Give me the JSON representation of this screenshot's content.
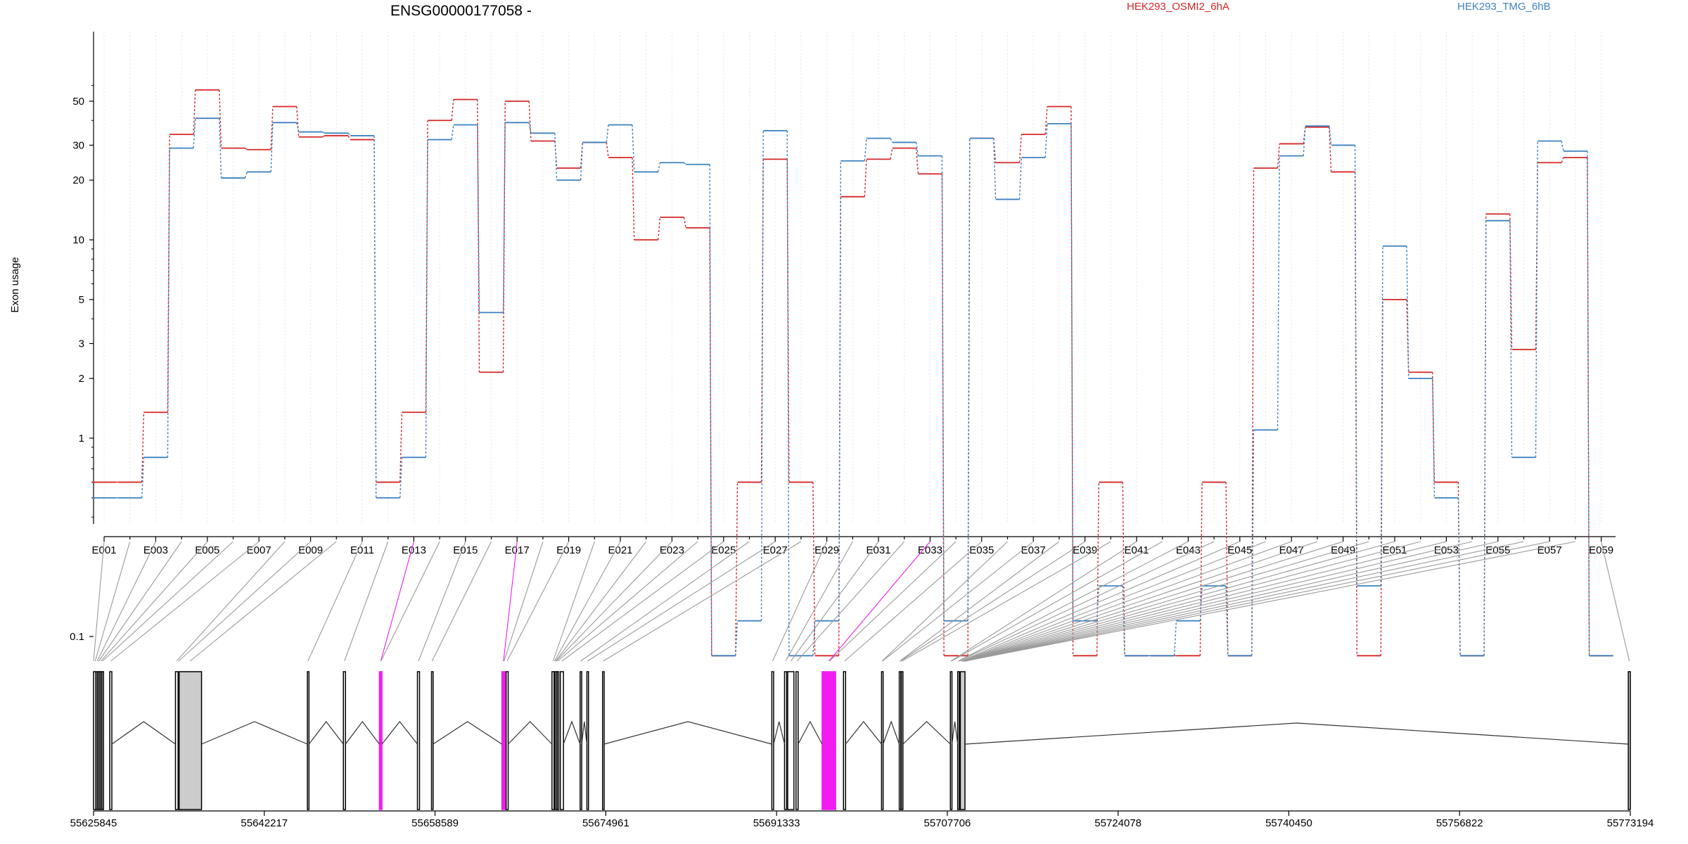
{
  "chart_data": {
    "type": "line",
    "title": "ENSG00000177058 -",
    "ylabel": "Exon usage",
    "xlabel": "",
    "yscale": "log",
    "ylim": [
      0.075,
      70
    ],
    "y_ticks": [
      0.1,
      1,
      2,
      3,
      5,
      10,
      20,
      30,
      50
    ],
    "y_tick_labels": [
      "0.1",
      "1",
      "2",
      "3",
      "5",
      "10",
      "20",
      "30",
      "50"
    ],
    "grid": "vertical dotted",
    "legend_position": "top",
    "colors": {
      "series_a": "#d62728",
      "series_b": "#3e82c0",
      "highlight": "#f01cf0",
      "exon_fill": "#cccccc"
    },
    "exons": [
      "E001",
      "E002",
      "E003",
      "E004",
      "E005",
      "E006",
      "E007",
      "E008",
      "E009",
      "E010",
      "E011",
      "E012",
      "E013",
      "E014",
      "E015",
      "E016",
      "E017",
      "E018",
      "E019",
      "E020",
      "E021",
      "E022",
      "E023",
      "E024",
      "E025",
      "E026",
      "E027",
      "E028",
      "E029",
      "E030",
      "E031",
      "E032",
      "E033",
      "E034",
      "E035",
      "E036",
      "E037",
      "E038",
      "E039",
      "E040",
      "E041",
      "E042",
      "E043",
      "E044",
      "E045",
      "E046",
      "E047",
      "E048",
      "E049",
      "E050",
      "E051",
      "E052",
      "E053",
      "E054",
      "E055",
      "E056",
      "E057",
      "E058",
      "E059"
    ],
    "x_tick_labels": [
      "E001",
      "E003",
      "E005",
      "E007",
      "E009",
      "E011",
      "E013",
      "E015",
      "E017",
      "E019",
      "E021",
      "E023",
      "E025",
      "E027",
      "E029",
      "E031",
      "E033",
      "E035",
      "E037",
      "E039",
      "E041",
      "E043",
      "E045",
      "E047",
      "E049",
      "E051",
      "E053",
      "E055",
      "E057",
      "E059"
    ],
    "series": [
      {
        "name": "HEK293_OSMI2_6hA",
        "color": "#d62728",
        "values": [
          0.6,
          0.6,
          1.35,
          34,
          57,
          29,
          28.5,
          47,
          33,
          33.5,
          32,
          0.6,
          1.35,
          40,
          51,
          2.15,
          50,
          31.5,
          23,
          31,
          26,
          10,
          13,
          11.5,
          0.08,
          0.6,
          25.5,
          0.6,
          0.08,
          16.5,
          25.5,
          29,
          21.5,
          0.08,
          32.5,
          24.5,
          34,
          47,
          0.08,
          0.6,
          0.08,
          0.08,
          0.08,
          0.6,
          0.08,
          23,
          30.5,
          37,
          22,
          0.08,
          5,
          2.15,
          0.6,
          0.08,
          13.5,
          2.8,
          24.5,
          26,
          0.08
        ]
      },
      {
        "name": "HEK293_TMG_6hB",
        "color": "#3e82c0",
        "values": [
          0.5,
          0.5,
          0.8,
          29,
          41,
          20.5,
          22,
          39,
          35,
          34.5,
          33.5,
          0.5,
          0.8,
          32,
          38,
          4.3,
          39,
          34.5,
          20,
          31,
          38,
          22,
          24.5,
          24,
          0.08,
          0.12,
          35.5,
          0.08,
          0.12,
          25,
          32.5,
          31,
          26.5,
          0.12,
          32.5,
          16,
          26,
          38.5,
          0.12,
          0.18,
          0.08,
          0.08,
          0.12,
          0.18,
          0.08,
          1.1,
          26.5,
          37.5,
          30,
          0.18,
          9.3,
          2,
          0.5,
          0.08,
          12.5,
          0.8,
          31.5,
          28,
          0.08
        ]
      }
    ],
    "genomic_axis": {
      "tick_labels": [
        "55625845",
        "55642217",
        "55658589",
        "55674961",
        "55691333",
        "55707706",
        "55724078",
        "55740450",
        "55756822",
        "55773194"
      ],
      "range": [
        55625845,
        55773194
      ]
    }
  }
}
